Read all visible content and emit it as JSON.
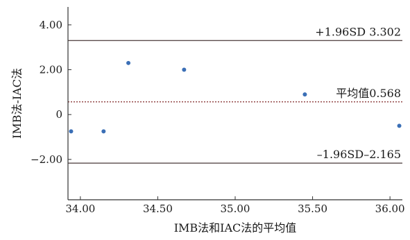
{
  "chart_data": {
    "type": "scatter",
    "xlabel": "IMB法和IAC法的平均值",
    "ylabel": "IMB法-IAC法",
    "xlim": [
      33.92,
      36.08
    ],
    "ylim": [
      -3.8,
      4.8
    ],
    "x_ticks": [
      {
        "value": 34.0,
        "label": "34.00"
      },
      {
        "value": 34.5,
        "label": "34.50"
      },
      {
        "value": 35.0,
        "label": "35.00"
      },
      {
        "value": 35.5,
        "label": "35.50"
      },
      {
        "value": 36.0,
        "label": "36.00"
      }
    ],
    "y_ticks": [
      {
        "value": 4.0,
        "label": "4.00"
      },
      {
        "value": 2.0,
        "label": "2.00"
      },
      {
        "value": 0.0,
        "label": "0"
      },
      {
        "value": -2.0,
        "label": "−2.00"
      }
    ],
    "points": [
      {
        "x": 33.94,
        "y": -0.75
      },
      {
        "x": 34.15,
        "y": -0.75
      },
      {
        "x": 34.31,
        "y": 2.3
      },
      {
        "x": 34.67,
        "y": 2.0
      },
      {
        "x": 35.45,
        "y": 0.9
      },
      {
        "x": 36.06,
        "y": -0.5
      }
    ],
    "reference_lines": [
      {
        "name": "upper",
        "y": 3.302,
        "label": "+1.96SD 3.302",
        "style": "solid"
      },
      {
        "name": "mean",
        "y": 0.568,
        "label": "平均值0.568",
        "style": "dotted"
      },
      {
        "name": "lower",
        "y": -2.165,
        "label": "–1.96SD–2.165",
        "style": "solid"
      }
    ],
    "colors": {
      "point": "#3b6fb6",
      "upper_line": "#5a4a4a",
      "mean_line": "#8b3a3a",
      "lower_line": "#5a4a4a",
      "axis": "#333333"
    },
    "grid": false,
    "legend": "none"
  }
}
